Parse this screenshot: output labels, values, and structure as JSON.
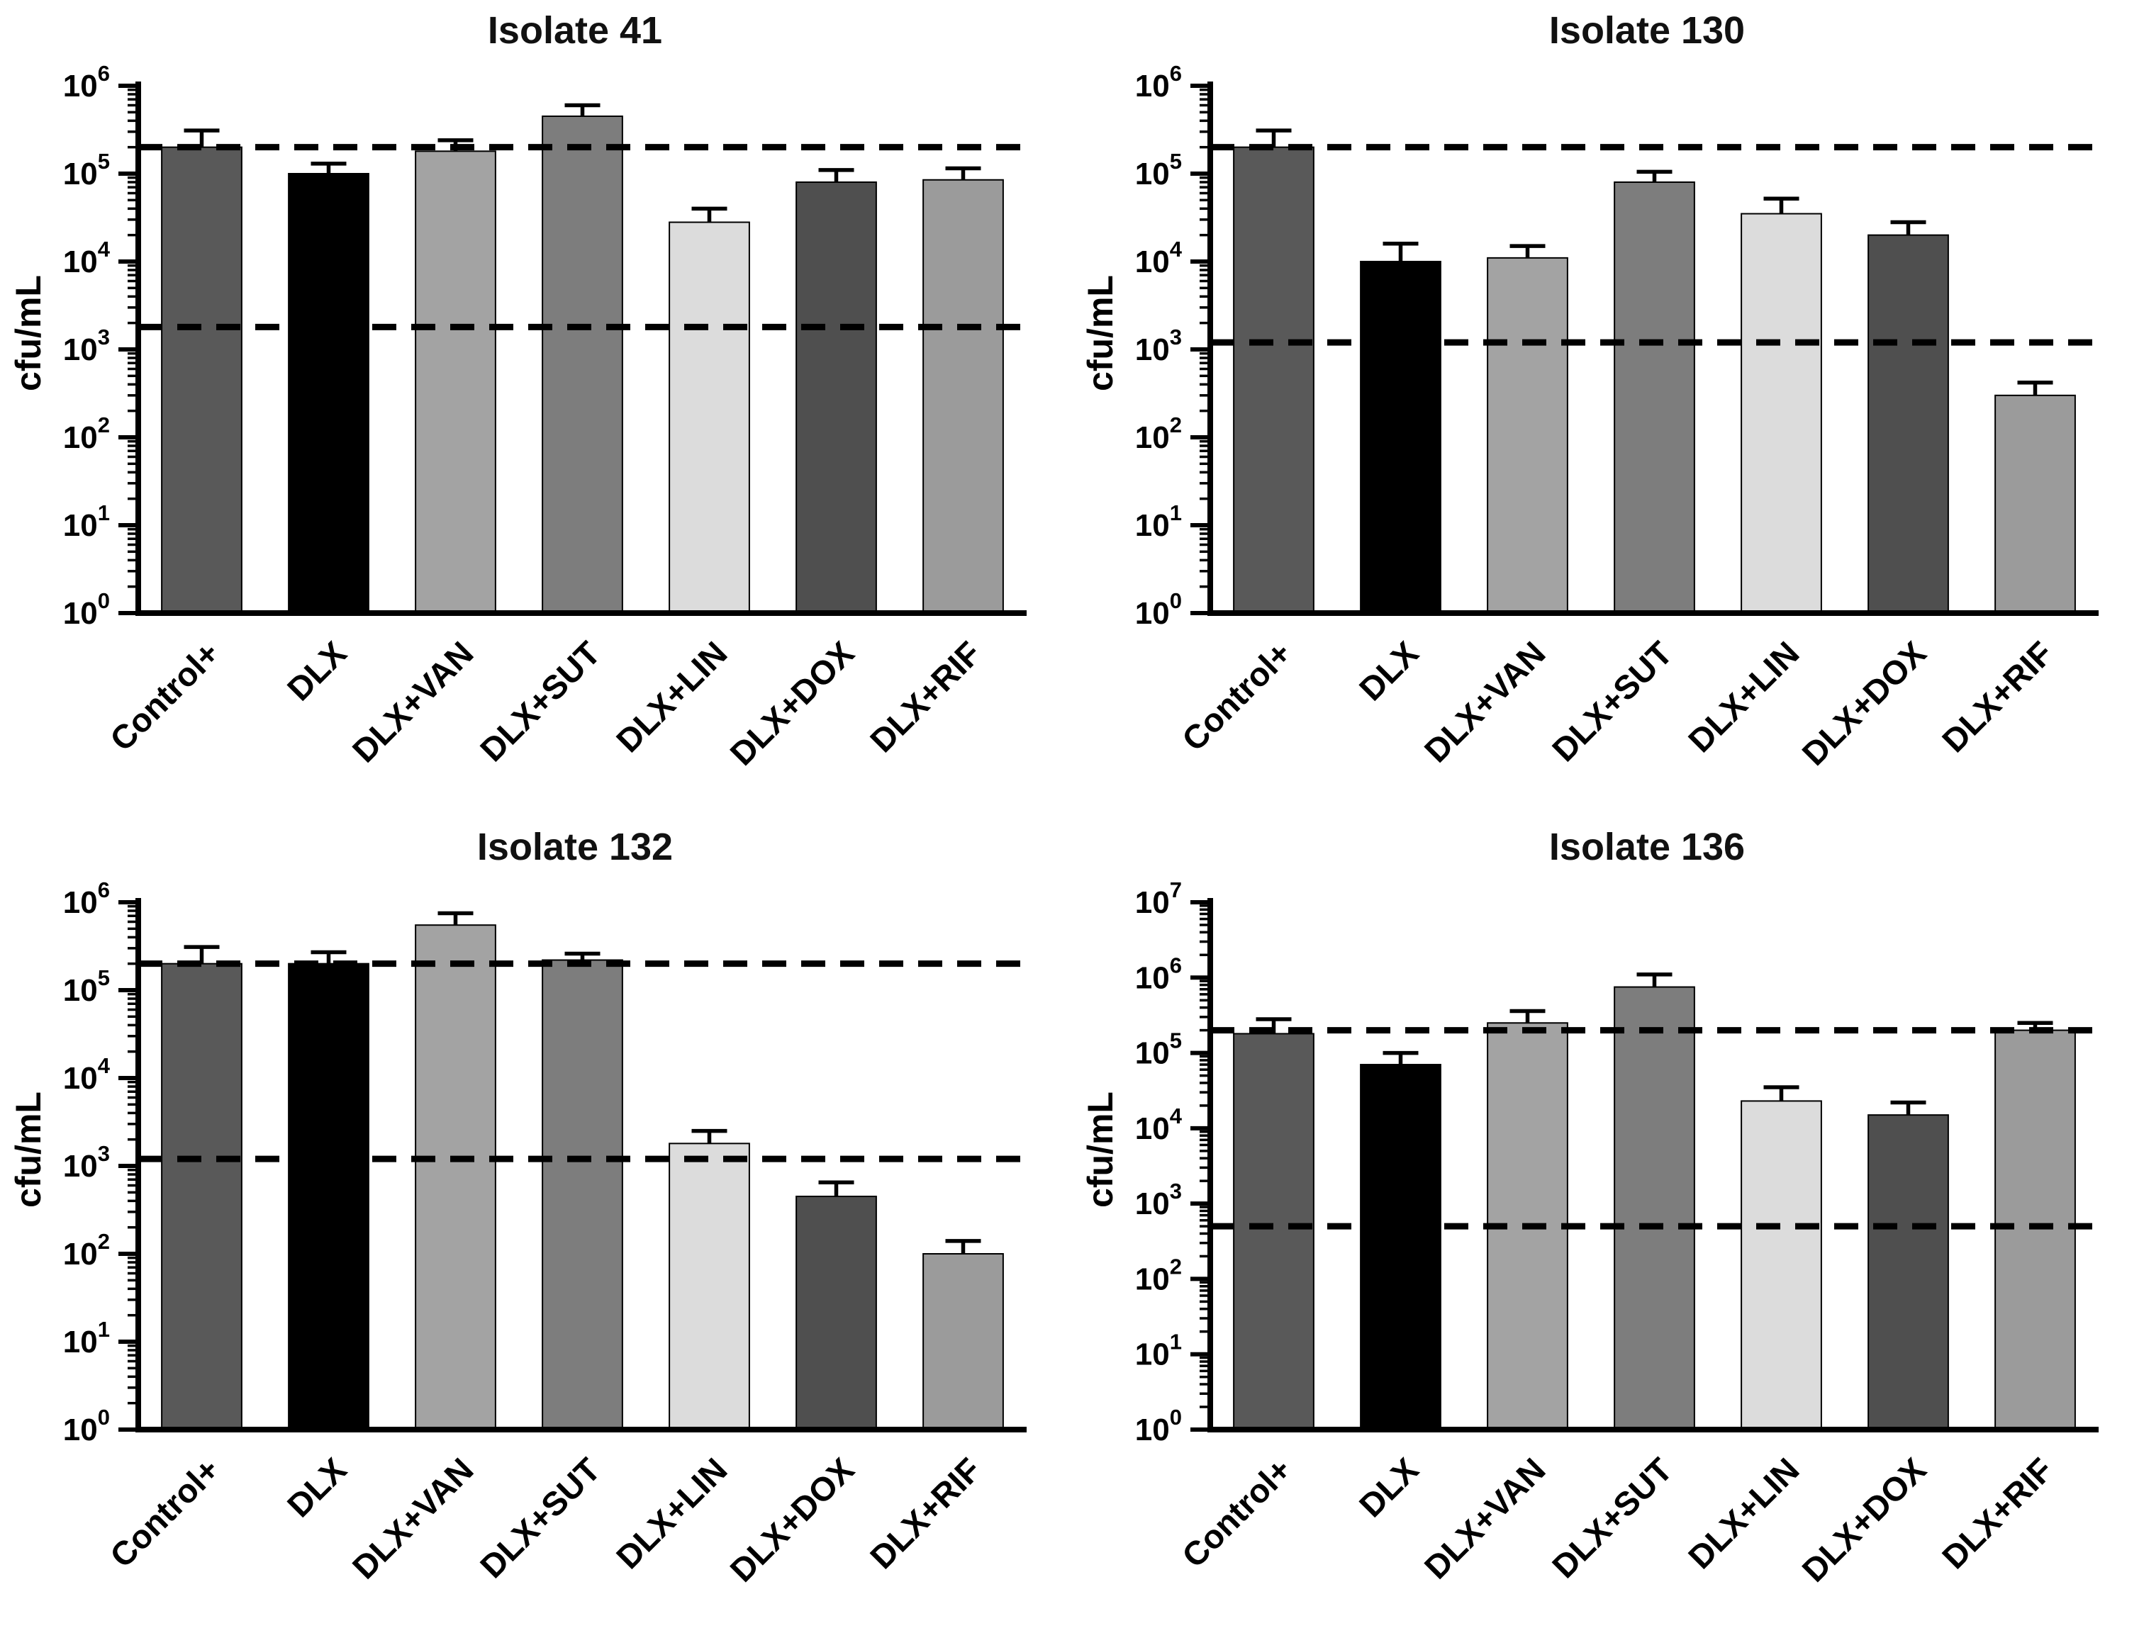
{
  "bar_colors": [
    "#595959",
    "#000000",
    "#a3a3a3",
    "#7d7d7d",
    "#dcdcdc",
    "#4f4f4f",
    "#9b9b9b"
  ],
  "chart_data": [
    {
      "type": "bar",
      "title": "Isolate 41",
      "ylabel": "cfu/mL",
      "yscale": "log",
      "ylim": [
        1,
        1000000
      ],
      "ytick_exponents": [
        0,
        1,
        2,
        3,
        4,
        5,
        6
      ],
      "categories": [
        "Control+",
        "DLX",
        "DLX+VAN",
        "DLX+SUT",
        "DLX+LIN",
        "DLX+DOX",
        "DLX+RIF"
      ],
      "values": [
        200000,
        100000,
        180000,
        450000,
        28000,
        80000,
        85000
      ],
      "errors_upper": [
        310000,
        130000,
        240000,
        600000,
        40000,
        110000,
        115000
      ],
      "dashed_lines": [
        200000,
        1800
      ],
      "grid": false,
      "legend": "none"
    },
    {
      "type": "bar",
      "title": "Isolate 130",
      "ylabel": "cfu/mL",
      "yscale": "log",
      "ylim": [
        1,
        1000000
      ],
      "ytick_exponents": [
        0,
        1,
        2,
        3,
        4,
        5,
        6
      ],
      "categories": [
        "Control+",
        "DLX",
        "DLX+VAN",
        "DLX+SUT",
        "DLX+LIN",
        "DLX+DOX",
        "DLX+RIF"
      ],
      "values": [
        200000,
        10000,
        11000,
        80000,
        35000,
        20000,
        300
      ],
      "errors_upper": [
        310000,
        16000,
        15000,
        105000,
        52000,
        28000,
        420
      ],
      "dashed_lines": [
        200000,
        1200
      ],
      "grid": false,
      "legend": "none"
    },
    {
      "type": "bar",
      "title": "Isolate 132",
      "ylabel": "cfu/mL",
      "yscale": "log",
      "ylim": [
        1,
        1000000
      ],
      "ytick_exponents": [
        0,
        1,
        2,
        3,
        4,
        5,
        6
      ],
      "categories": [
        "Control+",
        "DLX",
        "DLX+VAN",
        "DLX+SUT",
        "DLX+LIN",
        "DLX+DOX",
        "DLX+RIF"
      ],
      "values": [
        200000,
        200000,
        550000,
        220000,
        1800,
        450,
        100
      ],
      "errors_upper": [
        310000,
        270000,
        750000,
        260000,
        2500,
        650,
        140
      ],
      "dashed_lines": [
        200000,
        1200
      ],
      "grid": false,
      "legend": "none"
    },
    {
      "type": "bar",
      "title": "Isolate 136",
      "ylabel": "cfu/mL",
      "yscale": "log",
      "ylim": [
        1,
        10000000
      ],
      "ytick_exponents": [
        0,
        1,
        2,
        3,
        4,
        5,
        6,
        7
      ],
      "categories": [
        "Control+",
        "DLX",
        "DLX+VAN",
        "DLX+SUT",
        "DLX+LIN",
        "DLX+DOX",
        "DLX+RIF"
      ],
      "values": [
        180000,
        70000,
        250000,
        750000,
        23000,
        15000,
        200000
      ],
      "errors_upper": [
        280000,
        100000,
        360000,
        1100000,
        35000,
        22000,
        250000
      ],
      "dashed_lines": [
        200000,
        500
      ],
      "grid": false,
      "legend": "none"
    }
  ]
}
